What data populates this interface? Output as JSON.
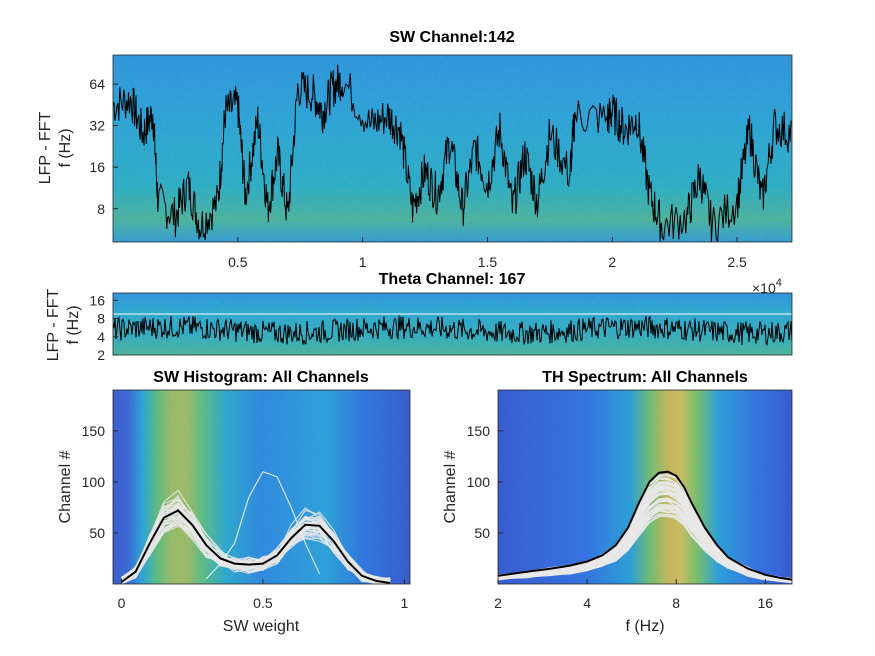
{
  "chart_data": [
    {
      "type": "heatmap",
      "id": "sw",
      "title": "SW Channel:142",
      "ylabel_line1": "LFP - FFT",
      "ylabel_line2": "f (Hz)",
      "xlim": [
        0,
        2.72
      ],
      "ylim_log2": [
        2.2,
        6.7
      ],
      "yscale": "log",
      "x_ticks": [
        "0.5",
        "1",
        "1.5",
        "2",
        "2.5"
      ],
      "x_tick_values": [
        0.5,
        1,
        1.5,
        2,
        2.5
      ],
      "y_ticks": [
        "8",
        "16",
        "32",
        "64"
      ],
      "y_tick_values": [
        8,
        16,
        32,
        64
      ],
      "trace_segments": [
        {
          "t": 0.0,
          "f": 45
        },
        {
          "t": 0.07,
          "f": 50
        },
        {
          "t": 0.12,
          "f": 28
        },
        {
          "t": 0.16,
          "f": 40
        },
        {
          "t": 0.18,
          "f": 9
        },
        {
          "t": 0.25,
          "f": 7
        },
        {
          "t": 0.3,
          "f": 12
        },
        {
          "t": 0.35,
          "f": 6
        },
        {
          "t": 0.42,
          "f": 9
        },
        {
          "t": 0.45,
          "f": 40
        },
        {
          "t": 0.5,
          "f": 45
        },
        {
          "t": 0.53,
          "f": 10
        },
        {
          "t": 0.58,
          "f": 35
        },
        {
          "t": 0.62,
          "f": 8
        },
        {
          "t": 0.66,
          "f": 20
        },
        {
          "t": 0.7,
          "f": 7
        },
        {
          "t": 0.74,
          "f": 60
        },
        {
          "t": 0.8,
          "f": 55
        },
        {
          "t": 0.84,
          "f": 40
        },
        {
          "t": 0.88,
          "f": 60
        },
        {
          "t": 0.92,
          "f": 70
        },
        {
          "t": 1.03,
          "f": 32
        },
        {
          "t": 1.1,
          "f": 38
        },
        {
          "t": 1.15,
          "f": 30
        },
        {
          "t": 1.2,
          "f": 8
        },
        {
          "t": 1.25,
          "f": 15
        },
        {
          "t": 1.3,
          "f": 10
        },
        {
          "t": 1.35,
          "f": 25
        },
        {
          "t": 1.4,
          "f": 8
        },
        {
          "t": 1.45,
          "f": 22
        },
        {
          "t": 1.5,
          "f": 12
        },
        {
          "t": 1.55,
          "f": 30
        },
        {
          "t": 1.6,
          "f": 8
        },
        {
          "t": 1.65,
          "f": 20
        },
        {
          "t": 1.7,
          "f": 9
        },
        {
          "t": 1.75,
          "f": 28
        },
        {
          "t": 1.83,
          "f": 14
        },
        {
          "t": 1.85,
          "f": 38
        },
        {
          "t": 1.98,
          "f": 36
        },
        {
          "t": 2.0,
          "f": 40
        },
        {
          "t": 2.05,
          "f": 30
        },
        {
          "t": 2.1,
          "f": 36
        },
        {
          "t": 2.15,
          "f": 10
        },
        {
          "t": 2.2,
          "f": 6
        },
        {
          "t": 2.3,
          "f": 7
        },
        {
          "t": 2.35,
          "f": 14
        },
        {
          "t": 2.4,
          "f": 6
        },
        {
          "t": 2.5,
          "f": 9
        },
        {
          "t": 2.55,
          "f": 30
        },
        {
          "t": 2.6,
          "f": 9
        },
        {
          "t": 2.65,
          "f": 32
        },
        {
          "t": 2.72,
          "f": 28
        }
      ]
    },
    {
      "type": "heatmap",
      "id": "theta",
      "title": "Theta Channel: 167",
      "ylabel_line1": "LFP - FFT",
      "ylabel_line2": "f (Hz)",
      "x_exponent_label": "×10",
      "x_exponent_power": "4",
      "ylim_log2": [
        1.0,
        4.4
      ],
      "y_ticks": [
        "2",
        "4",
        "8",
        "16"
      ],
      "y_tick_values": [
        2,
        4,
        8,
        16
      ],
      "threshold_line_hz": 9.5
    },
    {
      "type": "heatmap",
      "id": "swhist",
      "title": "SW Histogram: All Channels",
      "xlabel": "SW weight",
      "ylabel": "Channel #",
      "xlim": [
        -0.03,
        1.02
      ],
      "ylim": [
        0,
        190
      ],
      "x_ticks": [
        "0",
        "0.5",
        "1"
      ],
      "x_tick_values": [
        0,
        0.5,
        1
      ],
      "y_ticks": [
        "50",
        "100",
        "150"
      ],
      "y_tick_values": [
        50,
        100,
        150
      ],
      "mean_curve": {
        "x": [
          0.0,
          0.05,
          0.1,
          0.15,
          0.2,
          0.25,
          0.3,
          0.35,
          0.4,
          0.45,
          0.5,
          0.55,
          0.6,
          0.65,
          0.7,
          0.75,
          0.8,
          0.85,
          0.9,
          0.95
        ],
        "y": [
          2,
          12,
          40,
          65,
          72,
          58,
          38,
          25,
          20,
          19,
          20,
          28,
          45,
          58,
          57,
          42,
          22,
          8,
          3,
          1
        ]
      },
      "outlier_curve": {
        "x": [
          0.3,
          0.35,
          0.4,
          0.45,
          0.5,
          0.55,
          0.6,
          0.65,
          0.7
        ],
        "y": [
          5,
          20,
          40,
          85,
          110,
          105,
          75,
          40,
          10
        ]
      }
    },
    {
      "type": "heatmap",
      "id": "thspec",
      "title": "TH Spectrum: All Channels",
      "xlabel": "f (Hz)",
      "ylabel": "Channel #",
      "xlim_log2": [
        1.0,
        4.3
      ],
      "ylim": [
        0,
        190
      ],
      "x_ticks": [
        "2",
        "4",
        "8",
        "16"
      ],
      "x_tick_values": [
        2,
        4,
        8,
        16
      ],
      "y_ticks": [
        "50",
        "100",
        "150"
      ],
      "y_tick_values": [
        50,
        100,
        150
      ],
      "peak_hz": 7.5,
      "mean_curve": {
        "f": [
          2,
          2.5,
          3,
          3.5,
          4,
          4.5,
          5,
          5.5,
          6,
          6.5,
          7,
          7.5,
          8,
          8.5,
          9,
          10,
          11,
          12,
          14,
          16,
          18,
          20
        ],
        "y": [
          8,
          12,
          15,
          18,
          22,
          28,
          38,
          55,
          80,
          100,
          109,
          110,
          106,
          95,
          80,
          55,
          38,
          26,
          15,
          9,
          6,
          4
        ]
      }
    }
  ]
}
